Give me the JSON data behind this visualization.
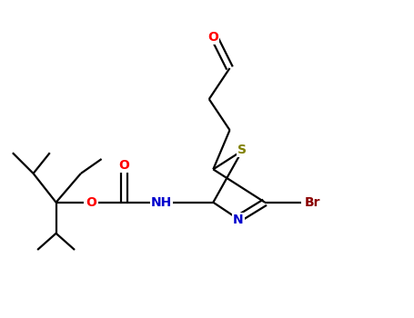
{
  "background_color": "#ffffff",
  "bond_color": "#000000",
  "atom_colors": {
    "O": "#ff0000",
    "N": "#0000cd",
    "S": "#808000",
    "Br": "#8b0000",
    "C": "#000000",
    "H": "#000000"
  },
  "figsize": [
    4.55,
    3.5
  ],
  "dpi": 100,
  "lw": 1.6,
  "fs": 10
}
